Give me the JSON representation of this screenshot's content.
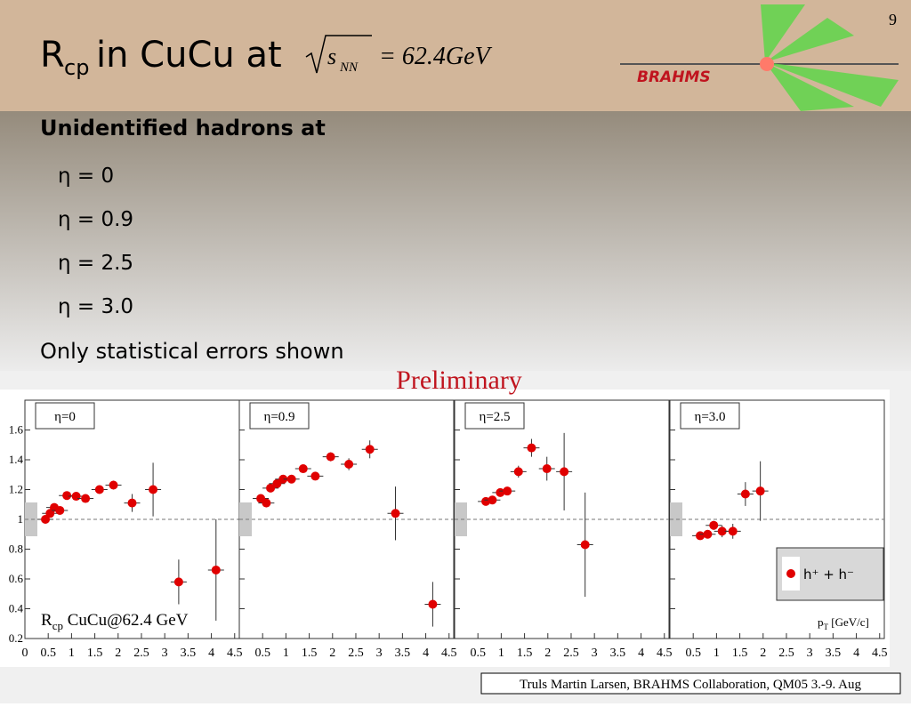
{
  "slide": {
    "number": "9",
    "title": [
      "R",
      "cp",
      " in CuCu at",
      "s",
      "NN",
      "= 62.4GeV"
    ],
    "logo": "BRAHMS",
    "subtitle": "Unidentified hadrons at",
    "bullets": [
      "η = 0",
      "η = 0.9",
      "η = 2.5",
      "η = 3.0"
    ],
    "note": "Only statistical errors shown",
    "preliminary": "Preliminary",
    "footer": "Truls Martin Larsen, BRAHMS Collaboration, QM05 3.-9. Aug"
  },
  "chart_data": [
    {
      "type": "scatter",
      "title": "η=0",
      "color": "#e00000",
      "annotation": [
        "R",
        "cp",
        " CuCu@62.4 GeV"
      ],
      "x": [
        0.44,
        0.54,
        0.63,
        0.75,
        0.9,
        1.1,
        1.3,
        1.6,
        1.9,
        2.3,
        2.75,
        3.3,
        4.1
      ],
      "values": [
        1.0,
        1.04,
        1.08,
        1.06,
        1.16,
        1.155,
        1.14,
        1.2,
        1.23,
        1.11,
        1.2,
        0.58,
        0.66
      ],
      "errors": [
        0.01,
        0.01,
        0.01,
        0.01,
        0.01,
        0.01,
        0.02,
        0.02,
        0.03,
        0.06,
        0.18,
        0.15,
        0.34
      ],
      "xlim": [
        0,
        4.6
      ],
      "xticks": [
        0,
        0.5,
        1,
        1.5,
        2,
        2.5,
        3,
        3.5,
        4,
        4.5
      ],
      "ylim": [
        0.2,
        1.8
      ],
      "yticks": [
        0.2,
        0.4,
        0.6,
        0.8,
        1,
        1.2,
        1.4,
        1.6
      ]
    },
    {
      "type": "scatter",
      "title": "η=0.9",
      "color": "#e00000",
      "x": [
        0.46,
        0.58,
        0.67,
        0.81,
        0.94,
        1.12,
        1.37,
        1.63,
        1.96,
        2.35,
        2.8,
        3.35,
        4.15
      ],
      "values": [
        1.14,
        1.11,
        1.21,
        1.24,
        1.27,
        1.27,
        1.34,
        1.29,
        1.42,
        1.37,
        1.47,
        1.04,
        0.43
      ],
      "errors": [
        0.01,
        0.01,
        0.01,
        0.01,
        0.01,
        0.01,
        0.01,
        0.02,
        0.03,
        0.04,
        0.06,
        0.18,
        0.15
      ],
      "xlim": [
        0,
        4.6
      ],
      "xticks": [
        0.5,
        1,
        1.5,
        2,
        2.5,
        3,
        3.5,
        4,
        4.5
      ],
      "ylim": [
        0.2,
        1.8
      ],
      "yticks": [
        0.2,
        0.4,
        0.6,
        0.8,
        1,
        1.2,
        1.4,
        1.6
      ]
    },
    {
      "type": "scatter",
      "title": "η=2.5",
      "color": "#e00000",
      "x": [
        0.67,
        0.81,
        0.98,
        1.13,
        1.37,
        1.65,
        1.98,
        2.35,
        2.8
      ],
      "values": [
        1.12,
        1.13,
        1.18,
        1.19,
        1.32,
        1.48,
        1.34,
        1.32,
        0.83
      ],
      "errors": [
        0.01,
        0.01,
        0.02,
        0.02,
        0.04,
        0.06,
        0.08,
        0.26,
        0.35
      ],
      "xlim": [
        0,
        4.6
      ],
      "xticks": [
        0.5,
        1,
        1.5,
        2,
        2.5,
        3,
        3.5,
        4,
        4.5
      ],
      "ylim": [
        0.2,
        1.8
      ],
      "yticks": [
        0.2,
        0.4,
        0.6,
        0.8,
        1,
        1.2,
        1.4,
        1.6
      ]
    },
    {
      "type": "scatter",
      "title": "η=3.0",
      "color": "#e00000",
      "legend": "h⁺ + h⁻",
      "x_label": [
        "p",
        "T",
        " [GeV/c]"
      ],
      "x": [
        0.65,
        0.81,
        0.94,
        1.12,
        1.35,
        1.62,
        1.94
      ],
      "values": [
        0.89,
        0.9,
        0.96,
        0.92,
        0.92,
        1.17,
        1.19
      ],
      "errors": [
        0.02,
        0.02,
        0.03,
        0.04,
        0.05,
        0.08,
        0.2
      ],
      "xlim": [
        0,
        4.6
      ],
      "xticks": [
        0.5,
        1,
        1.5,
        2,
        2.5,
        3,
        3.5,
        4,
        4.5
      ],
      "ylim": [
        0.2,
        1.8
      ],
      "yticks": [
        0.2,
        0.4,
        0.6,
        0.8,
        1,
        1.2,
        1.4,
        1.6
      ]
    }
  ]
}
